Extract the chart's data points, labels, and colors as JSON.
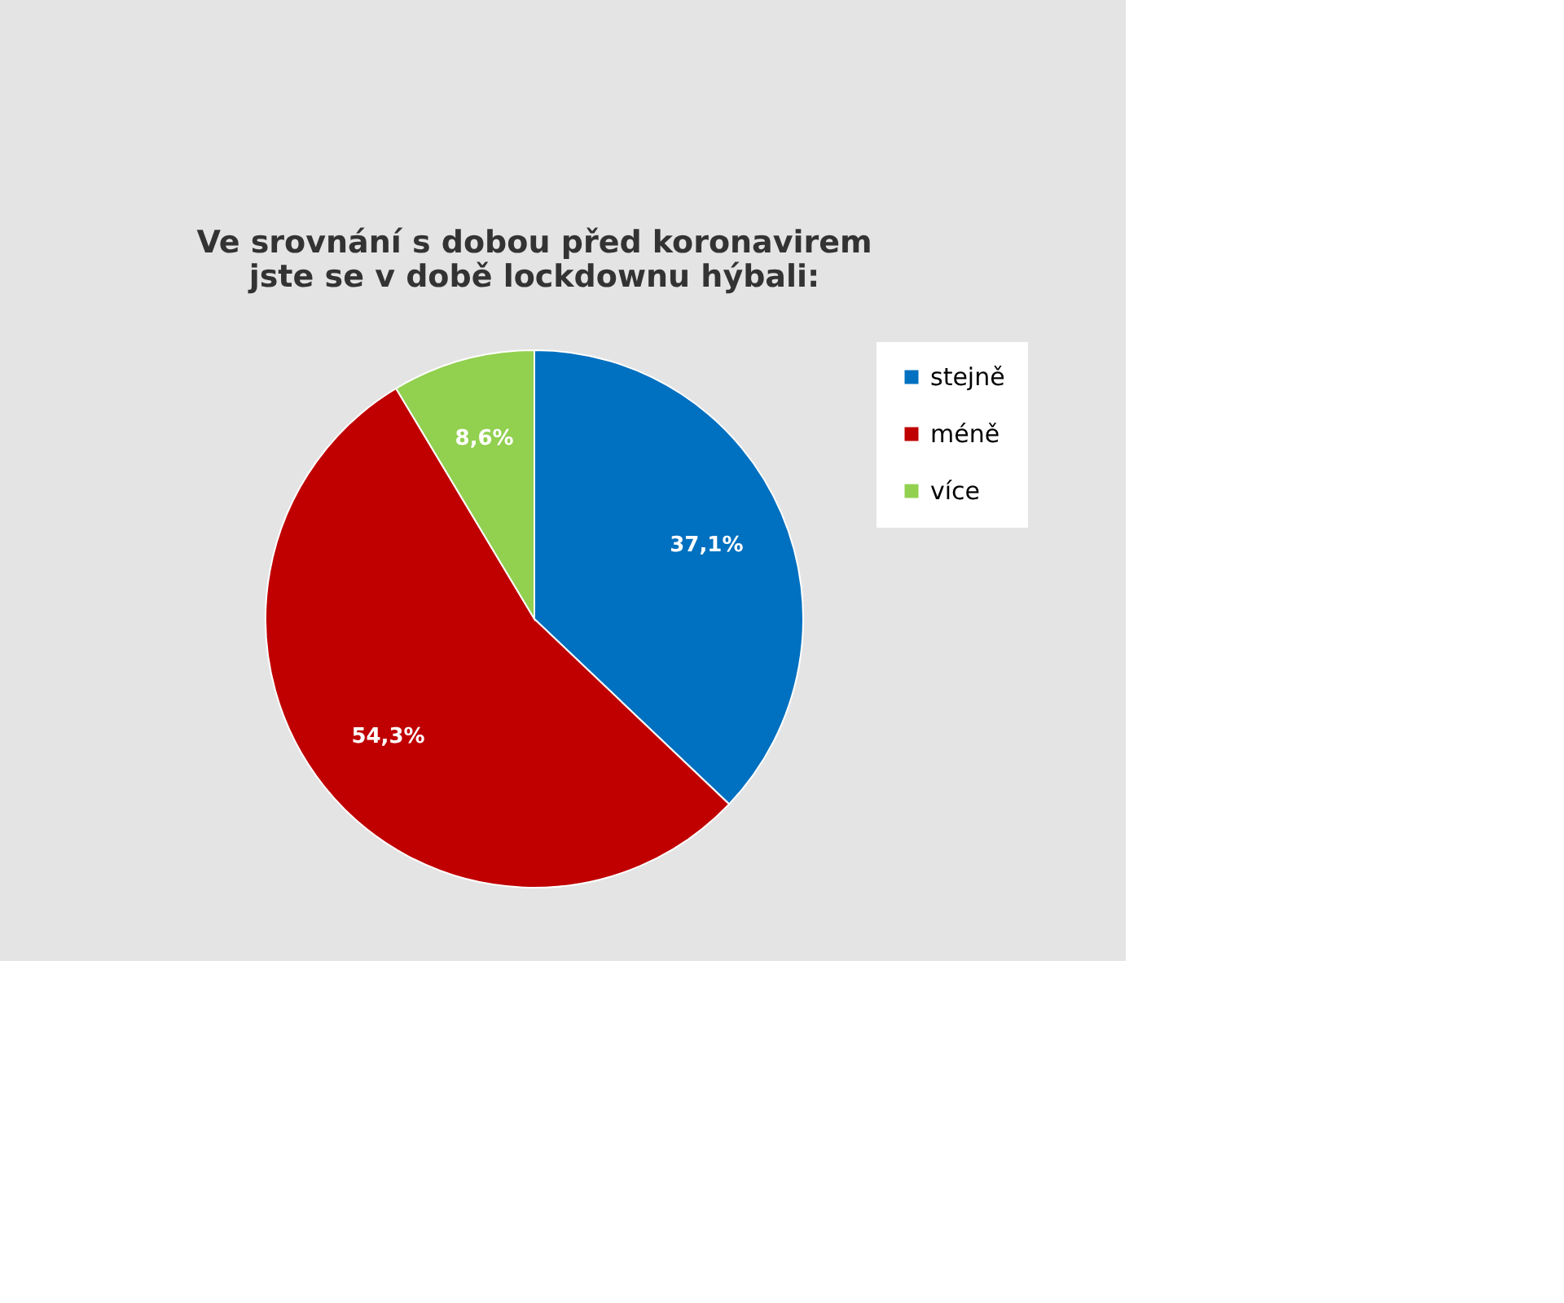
{
  "chart_data": {
    "type": "pie",
    "title": "Ve srovnání s dobou před koronavirem jste se v době lockdownu hýbali:",
    "categories": [
      "stejně",
      "méně",
      "více"
    ],
    "values": [
      37.1,
      54.3,
      8.6
    ],
    "colors": [
      "#0070c0",
      "#c00000",
      "#92d050"
    ],
    "value_labels": [
      "37,1%",
      "54,3%",
      "8,6%"
    ],
    "legend": "right"
  }
}
